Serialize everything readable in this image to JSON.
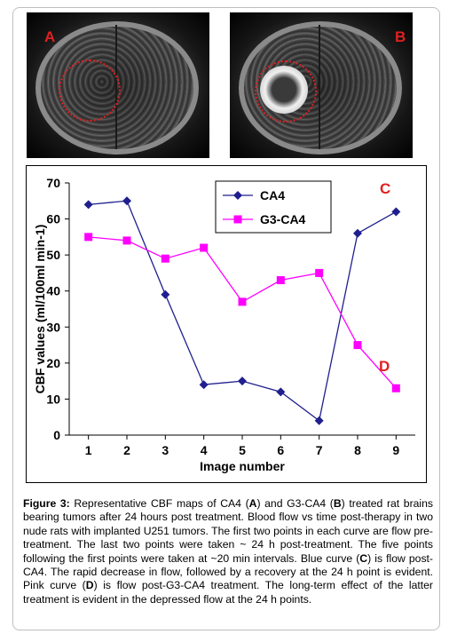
{
  "panels": {
    "a_label": "A",
    "b_label": "B"
  },
  "chart_data": {
    "type": "line",
    "title": "",
    "xlabel": "Image number",
    "ylabel": "CBF values (ml/100ml min-1)",
    "x": [
      1,
      2,
      3,
      4,
      5,
      6,
      7,
      8,
      9
    ],
    "xlim": [
      0.5,
      9.5
    ],
    "ylim": [
      0,
      70
    ],
    "yticks": [
      0,
      10,
      20,
      30,
      40,
      50,
      60,
      70
    ],
    "grid": false,
    "legend_position": "top-center",
    "series": [
      {
        "name": "CA4",
        "color": "#1f1f8f",
        "marker": "diamond",
        "values": [
          64,
          65,
          39,
          14,
          15,
          12,
          4,
          56,
          62
        ]
      },
      {
        "name": "G3-CA4",
        "color": "#ff00ff",
        "marker": "square",
        "values": [
          55,
          54,
          49,
          52,
          37,
          43,
          45,
          25,
          13
        ]
      }
    ],
    "annotations": [
      {
        "text": "C",
        "color": "#e02020"
      },
      {
        "text": "D",
        "color": "#e02020"
      }
    ]
  },
  "caption": {
    "figure_label": "Figure 3:",
    "part1": " Representative CBF maps of CA4 (",
    "ref_a": "A",
    "part2": ") and G3-CA4 (",
    "ref_b": "B",
    "part3": ") treated rat brains bearing tumors after 24 hours post treatment. Blood flow vs time post-therapy in two nude rats with implanted U251 tumors. The first two points in each curve are flow pre-treatment. The last two points were taken ~ 24 h post-treatment. The five points following the first points were taken at ~20 min intervals. Blue curve (",
    "ref_c": "C",
    "part4": ") is flow post-CA4. The rapid decrease in flow, followed by a recovery at the 24 h point is evident. Pink curve (",
    "ref_d": "D",
    "part5": ") is flow post-G3-CA4 treatment. The long-term effect of the latter treatment is evident in the depressed flow at the 24 h points."
  }
}
